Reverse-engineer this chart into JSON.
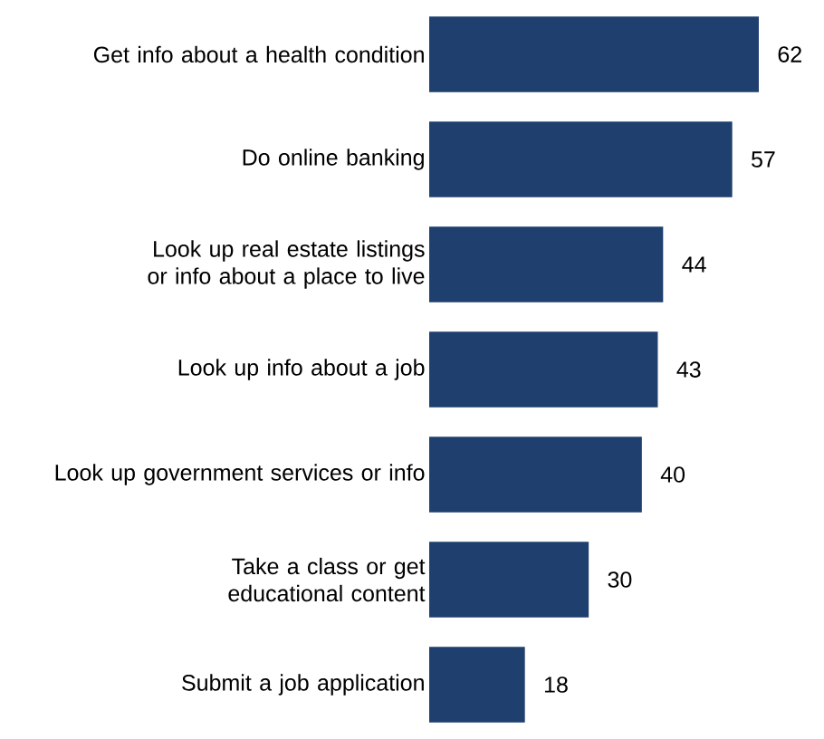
{
  "chart_data": {
    "type": "bar",
    "orientation": "horizontal",
    "categories": [
      "Get info about a health condition",
      "Do online banking",
      "Look up real estate listings or info about a place to live",
      "Look up info about a job",
      "Look up government services or info",
      "Take a class or get educational content",
      "Submit a job application"
    ],
    "values": [
      62,
      57,
      44,
      43,
      40,
      30,
      18
    ],
    "color": "#1f3f6e",
    "data_labels": true
  }
}
